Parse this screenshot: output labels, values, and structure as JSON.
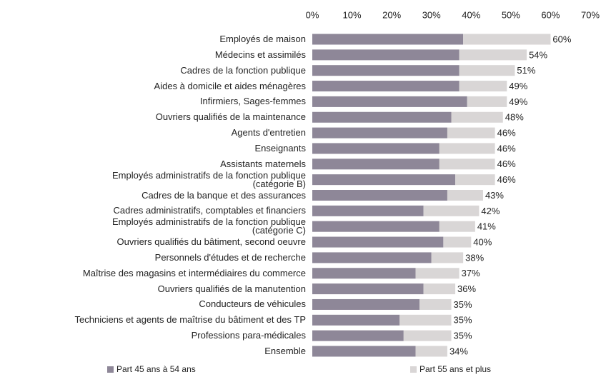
{
  "chart_data": {
    "type": "stacked-barh",
    "categories": [
      "Employés de maison",
      "Médecins et assimilés",
      "Cadres de la fonction publique",
      "Aides à domicile et aides ménagères",
      "Infirmiers, Sages-femmes",
      "Ouvriers qualifiés de la maintenance",
      "Agents d'entretien",
      "Enseignants",
      "Assistants maternels",
      "Employés administratifs de la fonction publique\n(catégorie B)",
      "Cadres de la banque et des assurances",
      "Cadres administratifs, comptables et financiers",
      "Employés administratifs de la fonction publique\n(catégorie C)",
      "Ouvriers qualifiés du bâtiment, second oeuvre",
      "Personnels d'études et de recherche",
      "Maîtrise des magasins et intermédiaires du commerce",
      "Ouvriers qualifiés de la manutention",
      "Conducteurs de véhicules",
      "Techniciens et agents de maîtrise du bâtiment et des TP",
      "Professions para-médicales",
      "Ensemble"
    ],
    "series": [
      {
        "name": "Part 45 ans à 54 ans",
        "color": "#8e8798",
        "values": [
          38,
          37,
          37,
          37,
          39,
          35,
          34,
          32,
          32,
          36,
          34,
          28,
          32,
          33,
          30,
          26,
          28,
          27,
          22,
          23,
          26
        ]
      },
      {
        "name": "Part 55 ans et plus",
        "color": "#d9d6d6",
        "values": [
          22,
          17,
          14,
          12,
          10,
          13,
          12,
          14,
          14,
          10,
          9,
          14,
          9,
          7,
          8,
          11,
          8,
          8,
          13,
          12,
          8
        ]
      }
    ],
    "totals": [
      60,
      54,
      51,
      49,
      49,
      48,
      46,
      46,
      46,
      46,
      43,
      42,
      41,
      40,
      38,
      37,
      36,
      35,
      35,
      35,
      34
    ],
    "total_labels": [
      "60%",
      "54%",
      "51%",
      "49%",
      "49%",
      "48%",
      "46%",
      "46%",
      "46%",
      "46%",
      "43%",
      "42%",
      "41%",
      "40%",
      "38%",
      "37%",
      "36%",
      "35%",
      "35%",
      "35%",
      "34%"
    ],
    "xlim": [
      0,
      70
    ],
    "xticks": [
      {
        "value": 0,
        "label": "0%"
      },
      {
        "value": 10,
        "label": "10%"
      },
      {
        "value": 20,
        "label": "20%"
      },
      {
        "value": 30,
        "label": "30%"
      },
      {
        "value": 40,
        "label": "40%"
      },
      {
        "value": 50,
        "label": "50%"
      },
      {
        "value": 60,
        "label": "60%"
      },
      {
        "value": 70,
        "label": "70%"
      }
    ],
    "legend": "bottom"
  }
}
